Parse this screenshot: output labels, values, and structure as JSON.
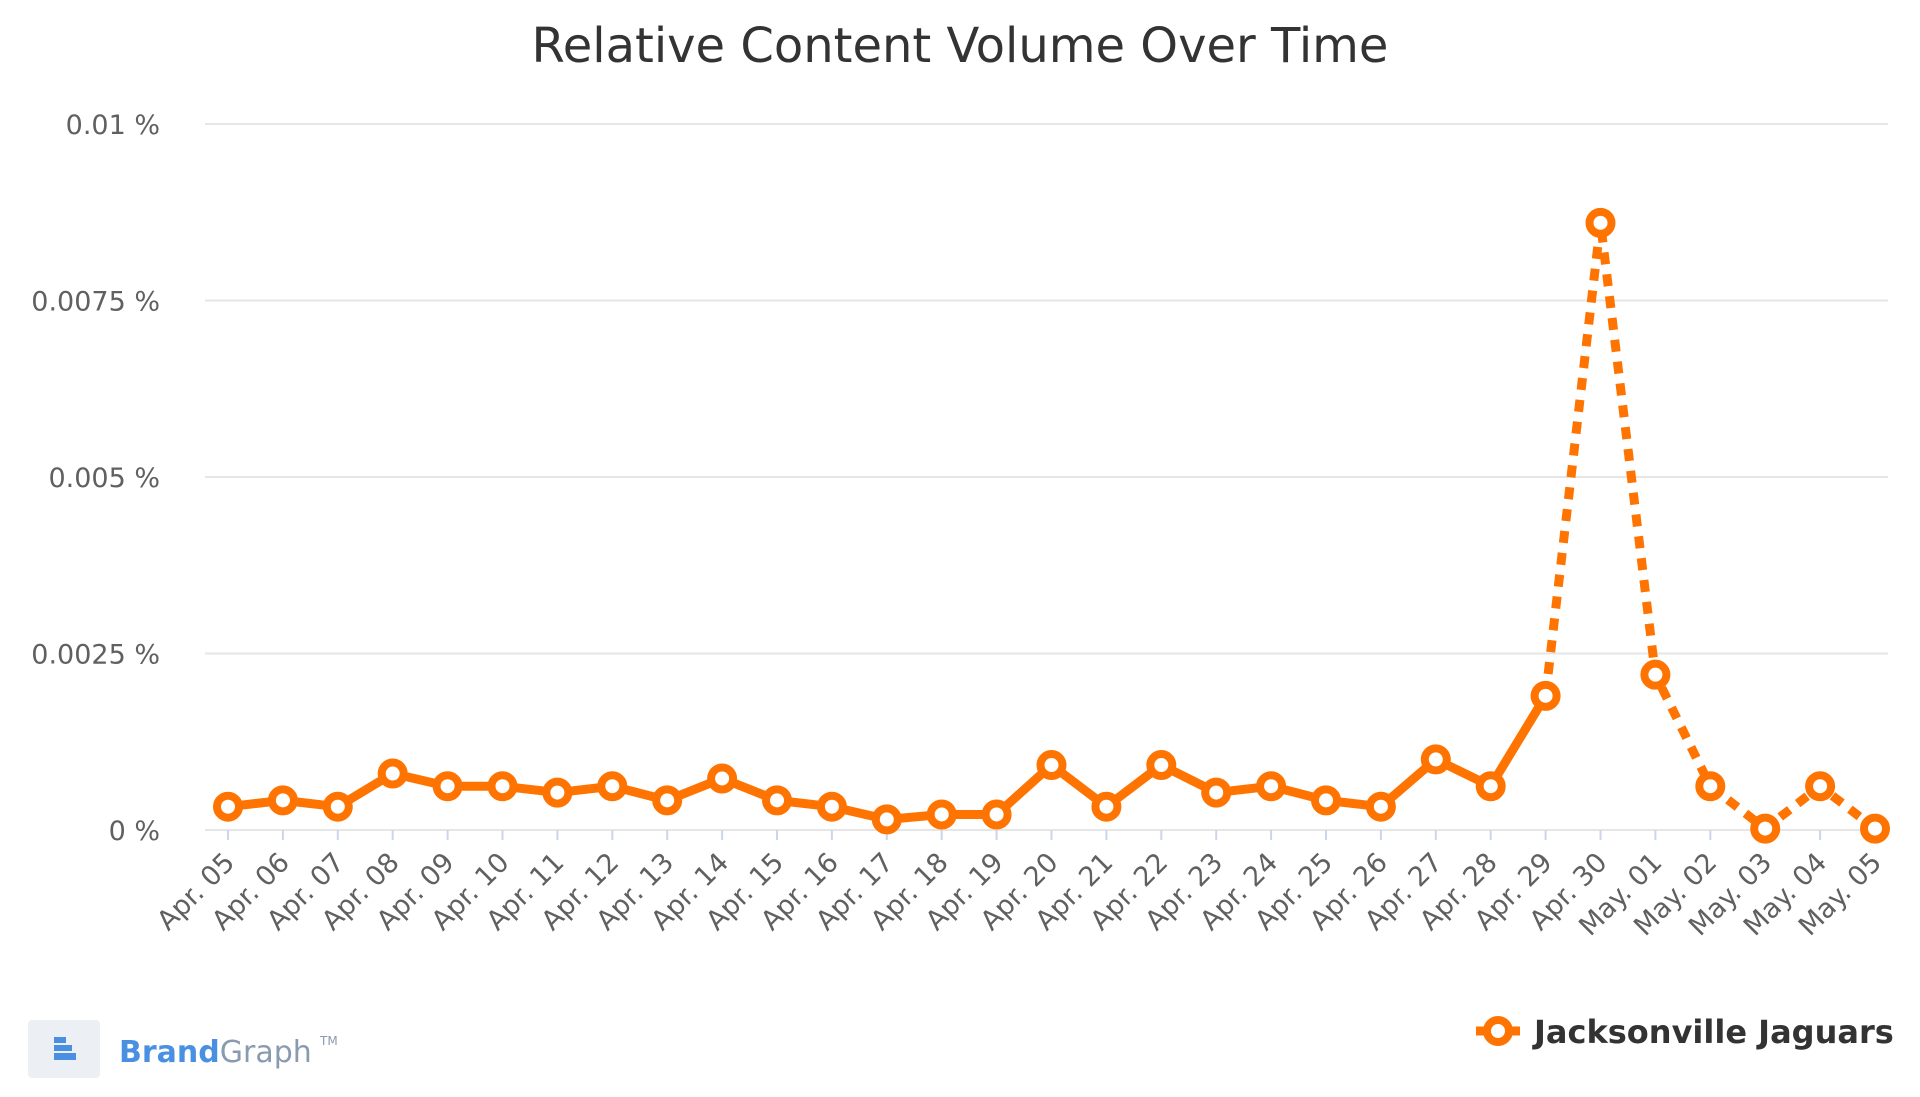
{
  "colors": {
    "series": "#ff7400",
    "grid": "#e6e6e6",
    "text": "#333333",
    "tick_text": "#606060",
    "brand_blue": "#4a90e2",
    "brand_gray": "#8a9bb0"
  },
  "brand": {
    "brand_part": "Brand",
    "graph_part": "Graph",
    "tm": "TM",
    "icon": "brandgraph-logo-icon"
  },
  "chart_data": {
    "type": "line",
    "title": "Relative Content Volume Over Time",
    "xlabel": "",
    "ylabel": "",
    "y_ticks": [
      "0 %",
      "0.0025 %",
      "0.005 %",
      "0.0075 %",
      "0.01 %"
    ],
    "y_tick_values": [
      0,
      0.0025,
      0.005,
      0.0075,
      0.01
    ],
    "ylim": [
      0,
      0.01
    ],
    "grid": true,
    "legend_position": "bottom-right",
    "categories": [
      "Apr. 05",
      "Apr. 06",
      "Apr. 07",
      "Apr. 08",
      "Apr. 09",
      "Apr. 10",
      "Apr. 11",
      "Apr. 12",
      "Apr. 13",
      "Apr. 14",
      "Apr. 15",
      "Apr. 16",
      "Apr. 17",
      "Apr. 18",
      "Apr. 19",
      "Apr. 20",
      "Apr. 21",
      "Apr. 22",
      "Apr. 23",
      "Apr. 24",
      "Apr. 25",
      "Apr. 26",
      "Apr. 27",
      "Apr. 28",
      "Apr. 29",
      "Apr. 30",
      "May. 01",
      "May. 02",
      "May. 03",
      "May. 04",
      "May. 05"
    ],
    "series": [
      {
        "name": "Jacksonville Jaguars",
        "values": [
          0.00033,
          0.00042,
          0.00033,
          0.0008,
          0.00062,
          0.00062,
          0.00053,
          0.00062,
          0.00042,
          0.00073,
          0.00042,
          0.00033,
          0.00015,
          0.00022,
          0.00022,
          0.00092,
          0.00033,
          0.00092,
          0.00053,
          0.00062,
          0.00042,
          0.00033,
          0.001,
          0.00062,
          0.0019,
          0.0086,
          0.0022,
          0.00062,
          2e-05,
          0.00062,
          2e-05
        ],
        "solid_through_index": 24
      }
    ]
  }
}
